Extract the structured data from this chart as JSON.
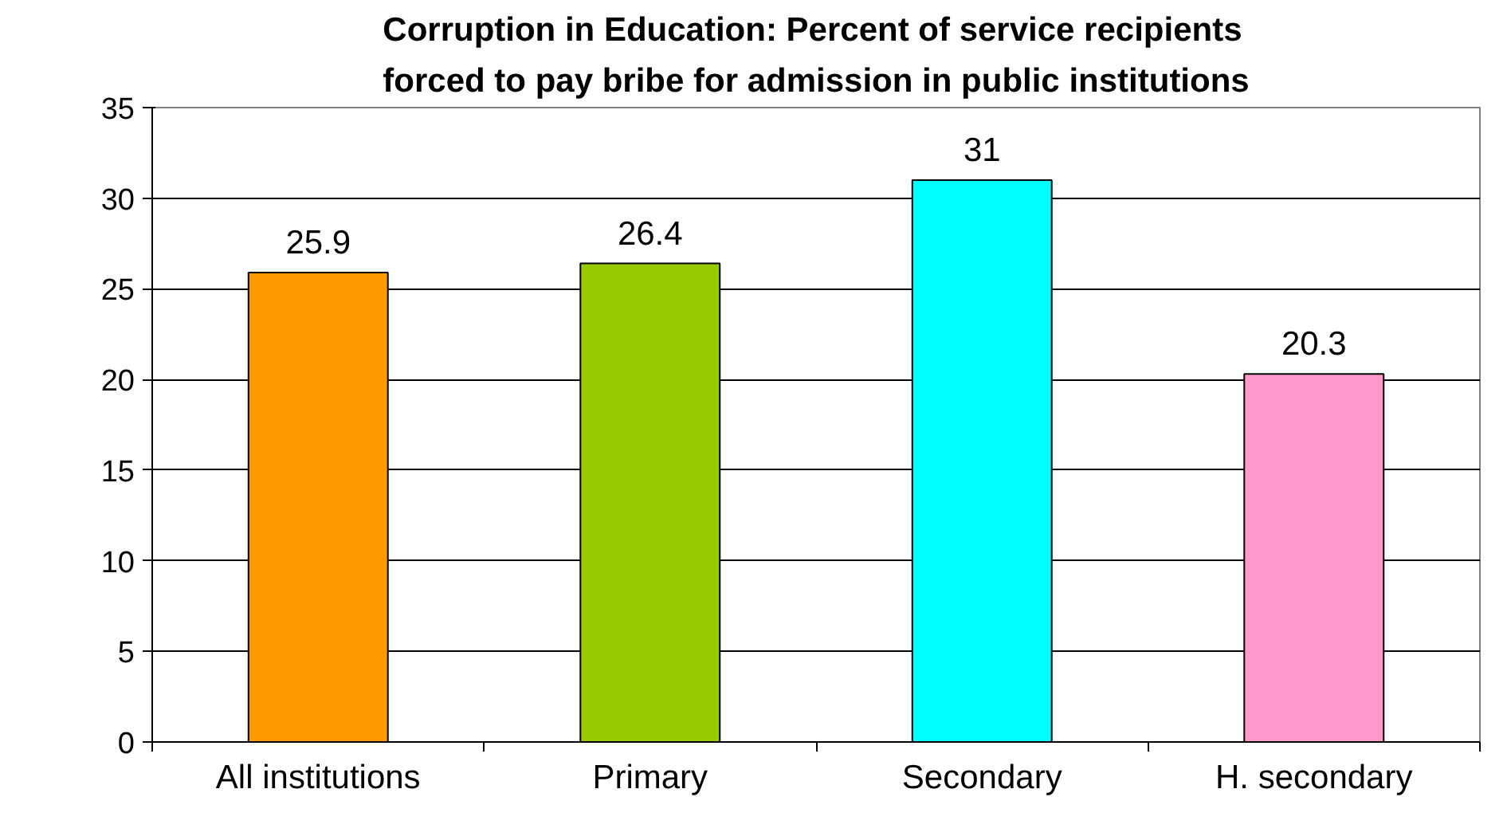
{
  "chart_data": {
    "type": "bar",
    "title": "Corruption in Education: Percent of service recipients\nforced to pay bribe for admission in public institutions",
    "categories": [
      "All institutions",
      "Primary",
      "Secondary",
      "H. secondary"
    ],
    "values": [
      25.9,
      26.4,
      31,
      20.3
    ],
    "colors": [
      "#ff9900",
      "#99cc00",
      "#00ffff",
      "#ff99cc"
    ],
    "ylim": [
      0,
      35
    ],
    "yticks": [
      0,
      5,
      10,
      15,
      20,
      25,
      30,
      35
    ],
    "grid": "y",
    "data_labels": true
  }
}
